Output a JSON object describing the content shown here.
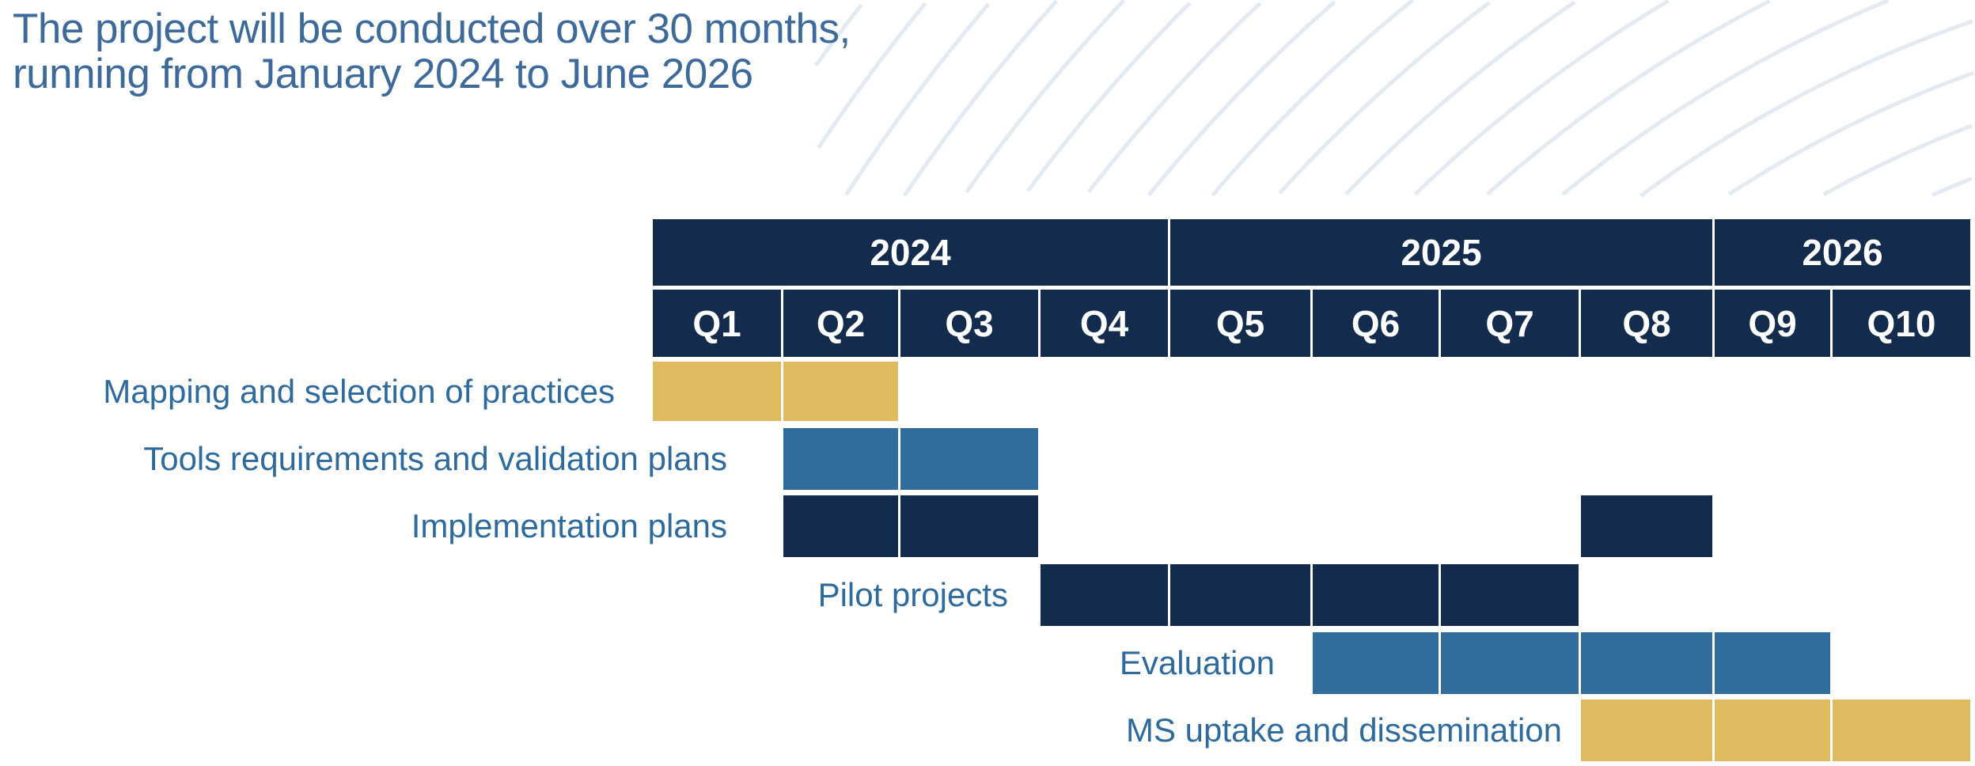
{
  "title": {
    "line1": "The project will be conducted over 30 months,",
    "line2": "running from January 2024 to June 2026"
  },
  "colors": {
    "navy": "#132b4c",
    "blue": "#306c9c",
    "gold": "#dfba5e",
    "title": "#3d6a9a",
    "label": "#2f6a9c",
    "arcs": "#e3eaf1"
  },
  "years": [
    {
      "label": "2024",
      "quarters": [
        "Q1",
        "Q2",
        "Q3",
        "Q4"
      ]
    },
    {
      "label": "2025",
      "quarters": [
        "Q5",
        "Q6",
        "Q7",
        "Q8"
      ]
    },
    {
      "label": "2026",
      "quarters": [
        "Q9",
        "Q10"
      ]
    }
  ],
  "quarters": [
    "Q1",
    "Q2",
    "Q3",
    "Q4",
    "Q5",
    "Q6",
    "Q7",
    "Q8",
    "Q9",
    "Q10"
  ],
  "tasks": [
    {
      "label": "Mapping and selection of practices",
      "color": "gold",
      "quarters": [
        "Q1",
        "Q2"
      ]
    },
    {
      "label": "Tools requirements and validation plans",
      "color": "blue",
      "quarters": [
        "Q2",
        "Q3"
      ]
    },
    {
      "label": "Implementation plans",
      "color": "navy",
      "quarters": [
        "Q2",
        "Q3",
        "Q8"
      ]
    },
    {
      "label": "Pilot projects",
      "color": "navy",
      "quarters": [
        "Q4",
        "Q5",
        "Q6",
        "Q7"
      ]
    },
    {
      "label": "Evaluation",
      "color": "blue",
      "quarters": [
        "Q6",
        "Q7",
        "Q8",
        "Q9"
      ]
    },
    {
      "label": "MS uptake and dissemination",
      "color": "gold",
      "quarters": [
        "Q8",
        "Q9",
        "Q10"
      ]
    }
  ]
}
